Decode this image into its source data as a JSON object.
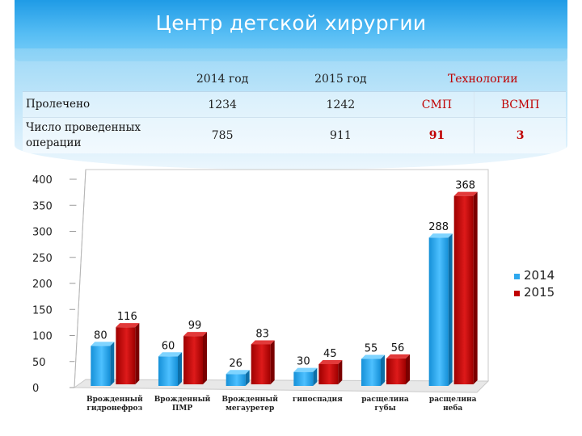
{
  "header": {
    "title": "Центр детской хирургии"
  },
  "table": {
    "header": [
      "",
      "2014 год",
      "2015 год",
      "Технологии",
      ""
    ],
    "rows": [
      {
        "label": "Пролечено",
        "v2014": "1234",
        "v2015": "1242",
        "t1": "СМП",
        "t2": "ВСМП"
      },
      {
        "label": "Число проведенных операции",
        "v2014": "785",
        "v2015": "911",
        "t1": "91",
        "t2": "3"
      }
    ]
  },
  "colors": {
    "series_2014": "#2ea8ee",
    "series_2015": "#c00000",
    "header_bg": "#1f9be6"
  },
  "chart_data": {
    "type": "bar",
    "categories": [
      [
        "Врожденный",
        "гидронефроз"
      ],
      [
        "Врожденный",
        "ПМР"
      ],
      [
        "Врожденный",
        "мегауретер"
      ],
      [
        "гипоспадия"
      ],
      [
        "расщелина",
        "губы"
      ],
      [
        "расщелина",
        "неба"
      ]
    ],
    "series": [
      {
        "name": "2014",
        "values": [
          80,
          60,
          26,
          30,
          55,
          288
        ]
      },
      {
        "name": "2015",
        "values": [
          116,
          99,
          83,
          45,
          56,
          368
        ]
      }
    ],
    "ylim": [
      0,
      400
    ],
    "yticks": [
      0,
      50,
      100,
      150,
      200,
      250,
      300,
      350,
      400
    ],
    "grid": false,
    "legend": "right",
    "style": "3d-bar"
  }
}
